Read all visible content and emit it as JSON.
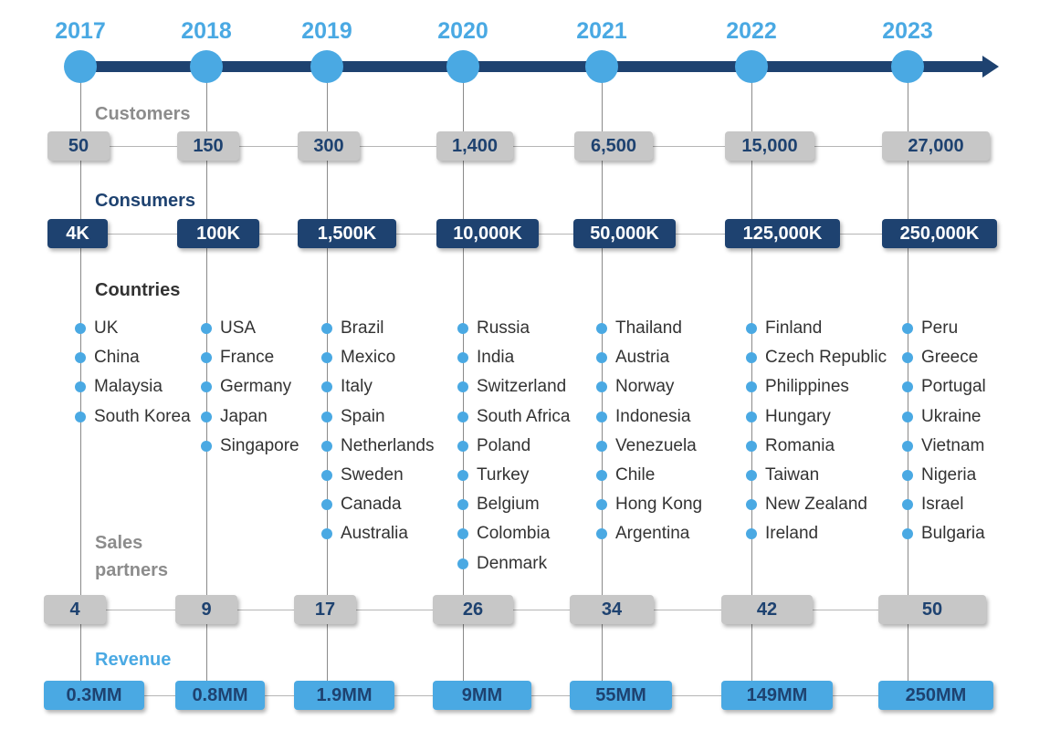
{
  "timeline": {
    "years": [
      "2017",
      "2018",
      "2019",
      "2020",
      "2021",
      "2022",
      "2023"
    ]
  },
  "labels": {
    "customers": "Customers",
    "consumers": "Consumers",
    "countries": "Countries",
    "sales_partners": "Sales partners",
    "revenue": "Revenue"
  },
  "customers": [
    "50",
    "150",
    "300",
    "1,400",
    "6,500",
    "15,000",
    "27,000"
  ],
  "consumers": [
    "4K",
    "100K",
    "1,500K",
    "10,000K",
    "50,000K",
    "125,000K",
    "250,000K"
  ],
  "countries": [
    [
      "UK",
      "China",
      "Malaysia",
      "South Korea"
    ],
    [
      "USA",
      "France",
      "Germany",
      "Japan",
      "Singapore"
    ],
    [
      "Brazil",
      "Mexico",
      "Italy",
      "Spain",
      "Netherlands",
      "Sweden",
      "Canada",
      "Australia"
    ],
    [
      "Russia",
      "India",
      "Switzerland",
      "South Africa",
      "Poland",
      "Turkey",
      "Belgium",
      "Colombia",
      "Denmark"
    ],
    [
      "Thailand",
      "Austria",
      "Norway",
      "Indonesia",
      "Venezuela",
      "Chile",
      "Hong Kong",
      "Argentina"
    ],
    [
      "Finland",
      "Czech Republic",
      "Philippines",
      "Hungary",
      "Romania",
      "Taiwan",
      "New Zealand",
      "Ireland"
    ],
    [
      "Peru",
      "Greece",
      "Portugal",
      "Ukraine",
      "Vietnam",
      "Nigeria",
      "Israel",
      "Bulgaria"
    ]
  ],
  "sales_partners": [
    "4",
    "9",
    "17",
    "26",
    "34",
    "42",
    "50"
  ],
  "revenue": [
    "0.3MM",
    "0.8MM",
    "1.9MM",
    "9MM",
    "55MM",
    "149MM",
    "250MM"
  ],
  "colors": {
    "light_blue": "#4aa9e3",
    "dark_navy": "#1e4270",
    "gray": "#c7c7c7",
    "text": "#333333"
  }
}
